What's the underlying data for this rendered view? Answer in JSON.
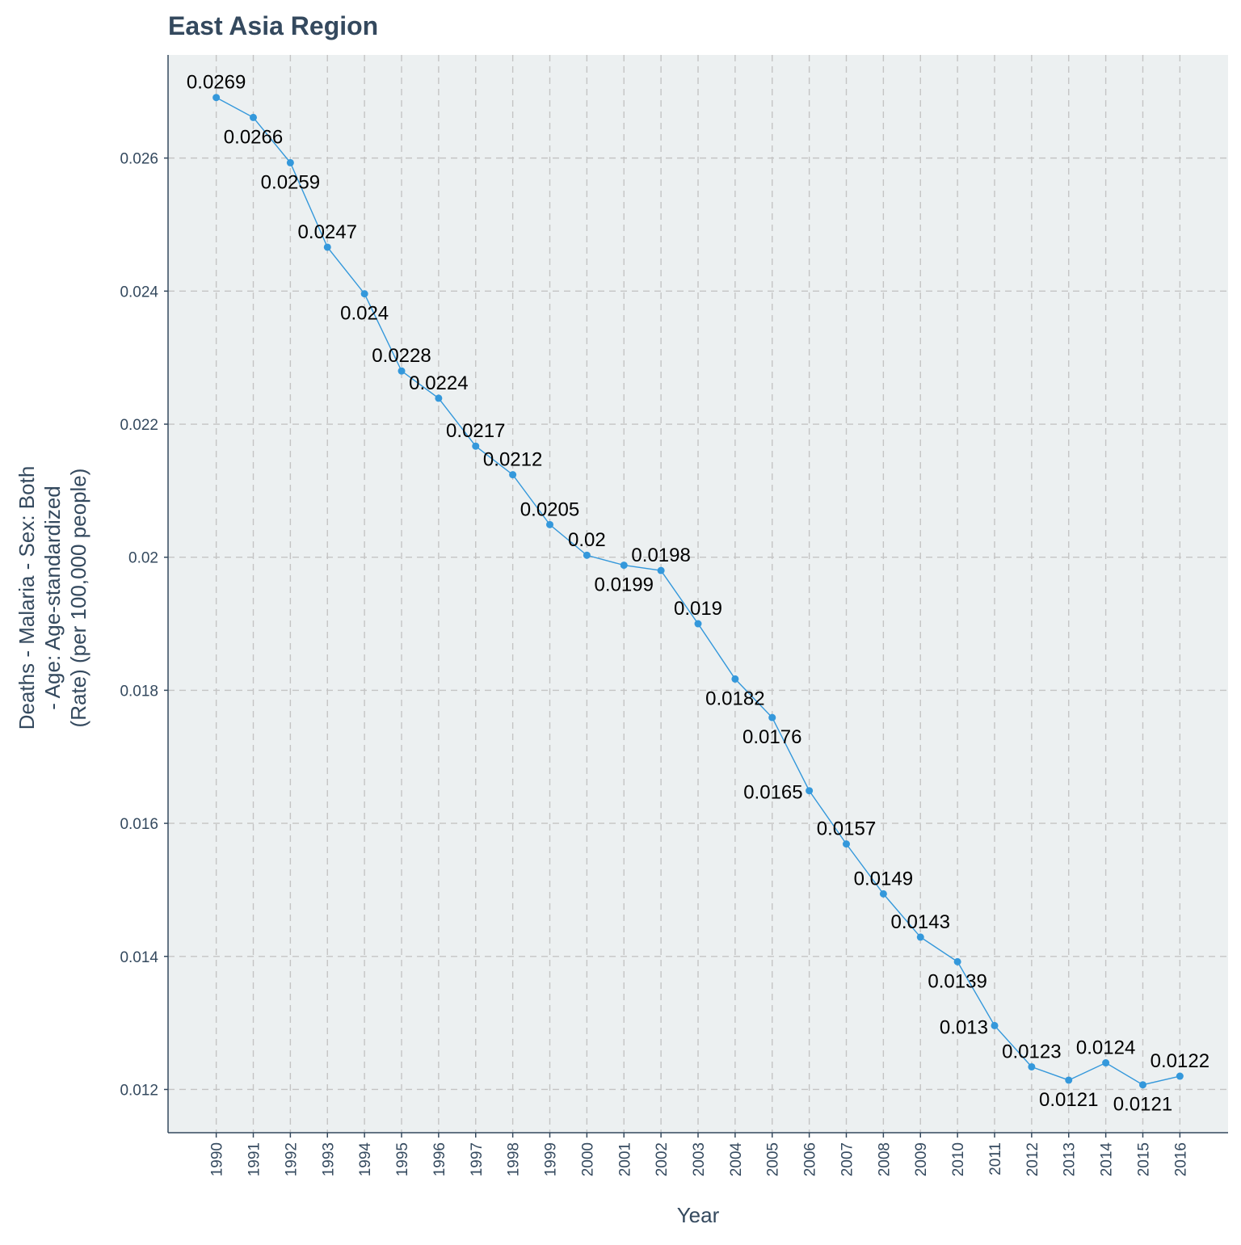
{
  "chart_data": {
    "type": "line",
    "title": "East Asia Region",
    "xlabel": "Year",
    "ylabel_lines": [
      "Deaths - Malaria - Sex: Both",
      "- Age: Age-standardized",
      "(Rate) (per 100,000 people)"
    ],
    "x": [
      1990,
      1991,
      1992,
      1993,
      1994,
      1995,
      1996,
      1997,
      1998,
      1999,
      2000,
      2001,
      2002,
      2003,
      2004,
      2005,
      2006,
      2007,
      2008,
      2009,
      2010,
      2011,
      2012,
      2013,
      2014,
      2015,
      2016
    ],
    "y": [
      0.02691,
      0.02661,
      0.02593,
      0.02466,
      0.02396,
      0.0228,
      0.02239,
      0.02167,
      0.02124,
      0.02049,
      0.02003,
      0.01988,
      0.0198,
      0.019,
      0.01817,
      0.01759,
      0.01649,
      0.01569,
      0.01494,
      0.01429,
      0.01392,
      0.01296,
      0.01234,
      0.01214,
      0.0124,
      0.01207,
      0.0122
    ],
    "data_labels": [
      "0.0269",
      "0.0266",
      "0.0259",
      "0.0247",
      "0.024",
      "0.0228",
      "0.0224",
      "0.0217",
      "0.0212",
      "0.0205",
      "0.02",
      "0.0199",
      "0.0198",
      "0.019",
      "0.0182",
      "0.0176",
      "0.0165",
      "0.0157",
      "0.0149",
      "0.0143",
      "0.0139",
      "0.013",
      "0.0123",
      "0.0121",
      "0.0124",
      "0.0121",
      "0.0122"
    ],
    "label_side": [
      "above",
      "below",
      "below",
      "above",
      "below",
      "above",
      "above",
      "above",
      "above",
      "above",
      "above",
      "below",
      "above",
      "above",
      "below",
      "below",
      "left",
      "above",
      "above",
      "above",
      "below",
      "left",
      "above",
      "below",
      "above",
      "below",
      "above"
    ],
    "y_ticks": [
      0.012,
      0.014,
      0.016,
      0.018,
      0.02,
      0.022,
      0.024,
      0.026
    ],
    "y_tick_labels": [
      "0.012",
      "0.014",
      "0.016",
      "0.018",
      "0.02",
      "0.022",
      "0.024",
      "0.026"
    ],
    "ylim": [
      0.01135,
      0.02755
    ],
    "xlim": [
      1988.7,
      2017.3
    ],
    "grid": true,
    "legend": "none",
    "colors": {
      "line": "#3498db",
      "panel_background": "#ecf0f1",
      "grid": "#c4c4c4",
      "axis_text": "#34495e",
      "data_label": "#000000"
    }
  }
}
